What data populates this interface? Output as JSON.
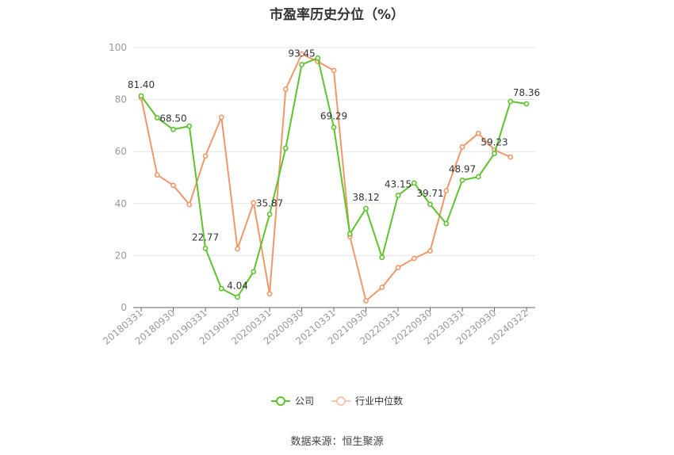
{
  "chart_data": {
    "type": "line",
    "title": "市盈率历史分位（%）",
    "ylim": [
      0,
      100
    ],
    "yticks": [
      0,
      20,
      40,
      60,
      80,
      100
    ],
    "x_tick_labels": [
      "20180331",
      "20180930",
      "20190331",
      "20190930",
      "20200331",
      "20200930",
      "20210331",
      "20210930",
      "20220331",
      "20220930",
      "20230331",
      "20230930",
      "20240322"
    ],
    "x": [
      "20180331",
      "20180630",
      "20180930",
      "20181231",
      "20190331",
      "20190630",
      "20190930",
      "20191231",
      "20200331",
      "20200630",
      "20200930",
      "20201231",
      "20210331",
      "20210630",
      "20210930",
      "20211231",
      "20220331",
      "20220630",
      "20220930",
      "20221231",
      "20230331",
      "20230630",
      "20230930",
      "20231231",
      "20240322"
    ],
    "series": [
      {
        "name": "公司",
        "color": "#5ec32c",
        "values": [
          81.4,
          73.0,
          68.5,
          69.8,
          22.77,
          7.3,
          4.04,
          13.8,
          35.87,
          61.3,
          93.45,
          96.0,
          69.29,
          28.3,
          38.12,
          19.3,
          43.15,
          47.9,
          39.71,
          32.3,
          48.97,
          50.3,
          59.23,
          79.3,
          78.36
        ]
      },
      {
        "name": "行业中位数",
        "color": "#f0976a",
        "values": [
          80.8,
          51.0,
          47.0,
          39.6,
          58.3,
          73.2,
          22.6,
          40.3,
          5.3,
          84.0,
          97.5,
          94.6,
          91.2,
          27.3,
          2.6,
          7.8,
          15.4,
          18.9,
          21.8,
          44.9,
          61.8,
          67.0,
          60.6,
          57.9,
          null
        ]
      }
    ],
    "data_labels": [
      {
        "index": 0,
        "text": "81.40"
      },
      {
        "index": 2,
        "text": "68.50"
      },
      {
        "index": 4,
        "text": "22.77"
      },
      {
        "index": 6,
        "text": "4.04"
      },
      {
        "index": 8,
        "text": "35.87"
      },
      {
        "index": 10,
        "text": "93.45"
      },
      {
        "index": 12,
        "text": "69.29"
      },
      {
        "index": 14,
        "text": "38.12"
      },
      {
        "index": 16,
        "text": "43.15"
      },
      {
        "index": 18,
        "text": "39.71"
      },
      {
        "index": 20,
        "text": "48.97"
      },
      {
        "index": 22,
        "text": "59.23"
      },
      {
        "index": 24,
        "text": "78.36"
      }
    ],
    "legend_position": "bottom",
    "grid": true
  },
  "legend": [
    {
      "label": "公司",
      "color": "#5ec32c"
    },
    {
      "label": "行业中位数",
      "color": "#f0976a"
    }
  ],
  "source": "数据来源：恒生聚源"
}
